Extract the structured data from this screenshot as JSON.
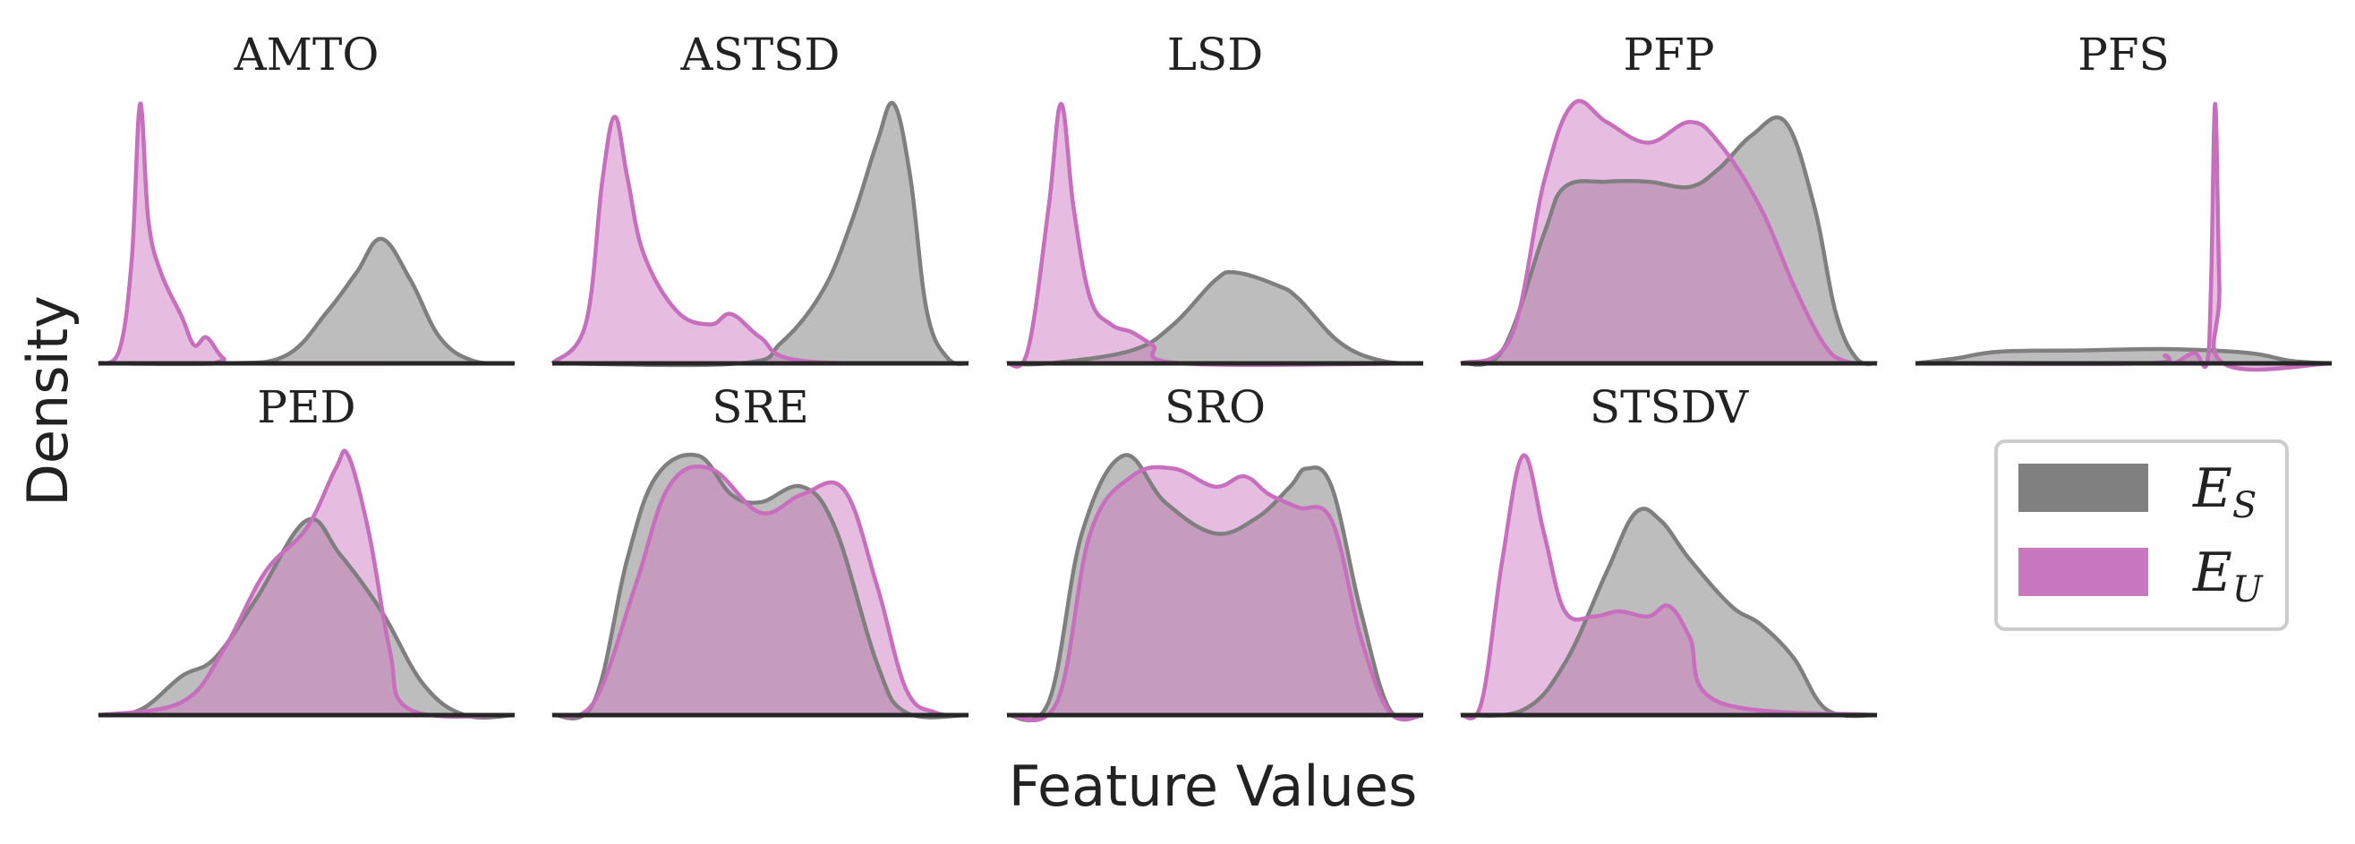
{
  "figure": {
    "ylabel": "Density",
    "xlabel": "Feature Values"
  },
  "legend": {
    "placement": "lower-right",
    "entries": [
      {
        "symbol": "E",
        "subscript": "S",
        "color": "#808080"
      },
      {
        "symbol": "E",
        "subscript": "U",
        "color": "#c878be"
      }
    ]
  },
  "colors": {
    "E_S_fill": "#bdbdbd",
    "E_S_line": "#7f7f7f",
    "E_U_fill": "#e6bde0",
    "E_U_line": "#c86ebe",
    "overlap_fill": "#c69cbe",
    "axis": "#262626"
  },
  "chart_data": [
    {
      "type": "area",
      "title": "AMTO",
      "series": [
        {
          "name": "E_S",
          "x": [
            0,
            0.3,
            0.45,
            0.55,
            0.62,
            0.68,
            0.75,
            0.82,
            0.9,
            1
          ],
          "y": [
            0,
            0,
            0.03,
            0.2,
            0.35,
            0.48,
            0.32,
            0.1,
            0.01,
            0
          ]
        },
        {
          "name": "E_U",
          "x": [
            0,
            0.05,
            0.08,
            0.1,
            0.12,
            0.15,
            0.2,
            0.23,
            0.26,
            0.3,
            0.35,
            1
          ],
          "y": [
            0,
            0.05,
            0.4,
            1.0,
            0.55,
            0.35,
            0.18,
            0.07,
            0.1,
            0.02,
            0,
            0
          ]
        }
      ]
    },
    {
      "type": "area",
      "title": "ASTSD",
      "series": [
        {
          "name": "E_S",
          "x": [
            0,
            0.45,
            0.55,
            0.65,
            0.72,
            0.78,
            0.82,
            0.86,
            0.9,
            0.95,
            1
          ],
          "y": [
            0,
            0,
            0.08,
            0.28,
            0.55,
            0.85,
            1.0,
            0.72,
            0.2,
            0.02,
            0
          ]
        },
        {
          "name": "E_U",
          "x": [
            0,
            0.08,
            0.12,
            0.15,
            0.18,
            0.22,
            0.3,
            0.38,
            0.43,
            0.5,
            0.6,
            1
          ],
          "y": [
            0,
            0.15,
            0.7,
            0.95,
            0.72,
            0.42,
            0.2,
            0.15,
            0.19,
            0.1,
            0.01,
            0
          ]
        }
      ]
    },
    {
      "type": "area",
      "title": "LSD",
      "series": [
        {
          "name": "E_S",
          "x": [
            0,
            0.1,
            0.3,
            0.4,
            0.5,
            0.55,
            0.65,
            0.7,
            0.8,
            0.9,
            1
          ],
          "y": [
            0,
            0,
            0.05,
            0.15,
            0.32,
            0.35,
            0.3,
            0.25,
            0.08,
            0.01,
            0
          ]
        },
        {
          "name": "E_U",
          "x": [
            0,
            0.05,
            0.1,
            0.13,
            0.16,
            0.2,
            0.25,
            0.3,
            0.35,
            0.42,
            1
          ],
          "y": [
            0,
            0.05,
            0.6,
            1.0,
            0.6,
            0.25,
            0.15,
            0.12,
            0.07,
            0,
            0
          ]
        }
      ]
    },
    {
      "type": "area",
      "title": "PFP",
      "series": [
        {
          "name": "E_S",
          "x": [
            0,
            0.1,
            0.2,
            0.25,
            0.35,
            0.45,
            0.55,
            0.62,
            0.7,
            0.78,
            0.85,
            0.9,
            0.95,
            1
          ],
          "y": [
            0,
            0.05,
            0.5,
            0.68,
            0.7,
            0.7,
            0.68,
            0.75,
            0.88,
            0.93,
            0.6,
            0.2,
            0.02,
            0
          ]
        },
        {
          "name": "E_U",
          "x": [
            0,
            0.12,
            0.2,
            0.27,
            0.35,
            0.45,
            0.55,
            0.62,
            0.72,
            0.8,
            0.87,
            0.92,
            1
          ],
          "y": [
            0,
            0.1,
            0.7,
            1.0,
            0.93,
            0.85,
            0.93,
            0.85,
            0.6,
            0.3,
            0.08,
            0.01,
            0
          ]
        }
      ]
    },
    {
      "type": "area",
      "title": "PFS",
      "series": [
        {
          "name": "E_S",
          "x": [
            0,
            0.1,
            0.2,
            0.4,
            0.6,
            0.8,
            0.9,
            1
          ],
          "y": [
            0,
            0.02,
            0.045,
            0.05,
            0.055,
            0.04,
            0.01,
            0
          ]
        },
        {
          "name": "E_U",
          "x": [
            0,
            0.55,
            0.6,
            0.62,
            0.67,
            0.7,
            0.71,
            0.72,
            0.73,
            0.74,
            1
          ],
          "y": [
            0,
            0,
            0.03,
            0,
            0.04,
            0,
            0.3,
            1.0,
            0.3,
            0,
            0
          ]
        }
      ]
    },
    {
      "type": "area",
      "title": "PED",
      "series": [
        {
          "name": "E_S",
          "x": [
            0,
            0.1,
            0.2,
            0.28,
            0.38,
            0.5,
            0.58,
            0.68,
            0.78,
            0.88,
            1
          ],
          "y": [
            0,
            0.02,
            0.15,
            0.22,
            0.45,
            0.75,
            0.62,
            0.4,
            0.12,
            0,
            0
          ]
        },
        {
          "name": "E_U",
          "x": [
            0,
            0.2,
            0.3,
            0.4,
            0.5,
            0.57,
            0.6,
            0.65,
            0.7,
            0.75,
            1
          ],
          "y": [
            0,
            0.05,
            0.25,
            0.55,
            0.72,
            0.95,
            1.0,
            0.7,
            0.25,
            0.02,
            0
          ]
        }
      ]
    },
    {
      "type": "area",
      "title": "SRE",
      "series": [
        {
          "name": "E_S",
          "x": [
            0,
            0.1,
            0.18,
            0.25,
            0.35,
            0.43,
            0.5,
            0.6,
            0.68,
            0.78,
            0.85,
            1
          ],
          "y": [
            0,
            0.05,
            0.6,
            0.92,
            1.0,
            0.85,
            0.82,
            0.88,
            0.72,
            0.2,
            0.01,
            0
          ]
        },
        {
          "name": "E_U",
          "x": [
            0,
            0.1,
            0.2,
            0.28,
            0.38,
            0.5,
            0.6,
            0.7,
            0.78,
            0.85,
            0.92,
            1
          ],
          "y": [
            0,
            0.05,
            0.5,
            0.88,
            0.95,
            0.78,
            0.85,
            0.87,
            0.5,
            0.1,
            0.01,
            0
          ]
        }
      ]
    },
    {
      "type": "area",
      "title": "SRO",
      "series": [
        {
          "name": "E_S",
          "x": [
            0,
            0.1,
            0.18,
            0.28,
            0.38,
            0.5,
            0.6,
            0.68,
            0.72,
            0.78,
            0.85,
            0.92,
            1
          ],
          "y": [
            0,
            0.05,
            0.7,
            1.0,
            0.82,
            0.7,
            0.76,
            0.88,
            0.95,
            0.88,
            0.4,
            0.02,
            0
          ]
        },
        {
          "name": "E_U",
          "x": [
            0,
            0.12,
            0.2,
            0.3,
            0.4,
            0.5,
            0.57,
            0.63,
            0.7,
            0.78,
            0.85,
            0.92,
            1
          ],
          "y": [
            0,
            0.05,
            0.7,
            0.92,
            0.95,
            0.88,
            0.92,
            0.85,
            0.8,
            0.75,
            0.3,
            0.01,
            0
          ]
        }
      ]
    },
    {
      "type": "area",
      "title": "STSDV",
      "series": [
        {
          "name": "E_S",
          "x": [
            0,
            0.15,
            0.25,
            0.35,
            0.42,
            0.48,
            0.55,
            0.65,
            0.72,
            0.8,
            0.88,
            1
          ],
          "y": [
            0,
            0.02,
            0.2,
            0.55,
            0.78,
            0.75,
            0.6,
            0.42,
            0.35,
            0.22,
            0.02,
            0
          ]
        },
        {
          "name": "E_U",
          "x": [
            0,
            0.05,
            0.1,
            0.15,
            0.2,
            0.25,
            0.32,
            0.38,
            0.45,
            0.5,
            0.55,
            0.62,
            1
          ],
          "y": [
            0,
            0.05,
            0.6,
            1.0,
            0.7,
            0.4,
            0.38,
            0.4,
            0.38,
            0.42,
            0.3,
            0.05,
            0
          ]
        }
      ]
    }
  ]
}
